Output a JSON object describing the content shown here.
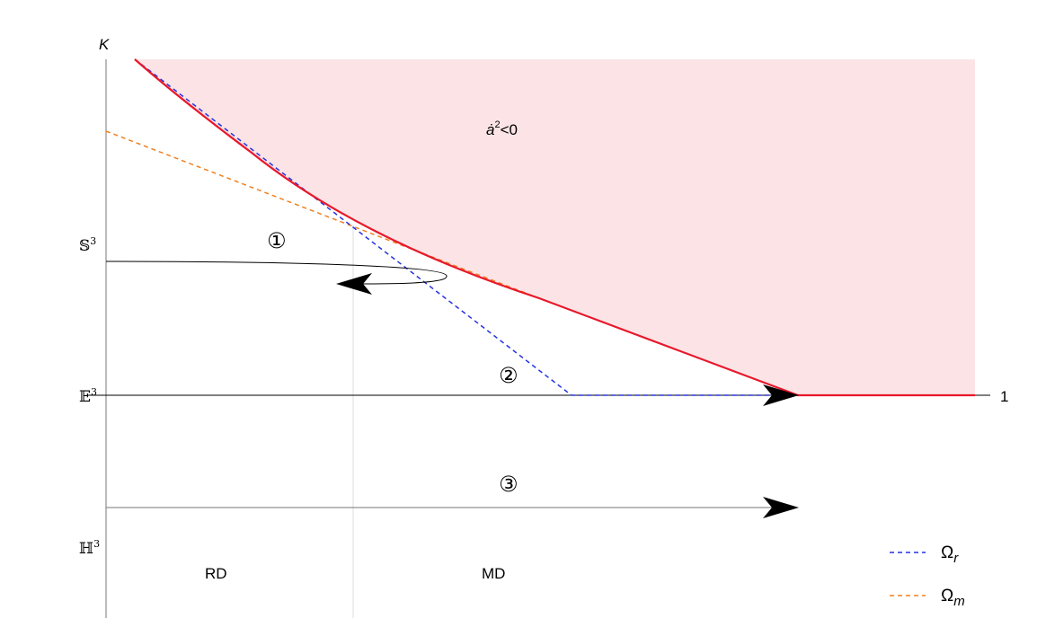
{
  "axis": {
    "y_label": "K",
    "x_end_label": "1"
  },
  "spaces": {
    "spherical": {
      "letter": "𝕊",
      "sup": "3"
    },
    "euclidean": {
      "letter": "𝔼",
      "sup": "3"
    },
    "hyperbolic": {
      "letter": "ℍ",
      "sup": "3"
    }
  },
  "forbidden_region": {
    "base": "ȧ",
    "sup": "2",
    "rest": "<0"
  },
  "trajectories": [
    "①",
    "②",
    "③"
  ],
  "eras": {
    "rd": "RD",
    "md": "MD"
  },
  "legend": [
    {
      "symbol": "Ω",
      "sub": "r",
      "color": "#2432e0",
      "style": "dashed"
    },
    {
      "symbol": "Ω",
      "sub": "m",
      "color": "#f08020",
      "style": "dashed"
    }
  ],
  "colors": {
    "region_fill": "#fce4e6",
    "boundary": "#e8182a",
    "omega_r": "#2432e0",
    "omega_m": "#f08020",
    "axis": "#000000",
    "divider": "#d8d8d8"
  }
}
